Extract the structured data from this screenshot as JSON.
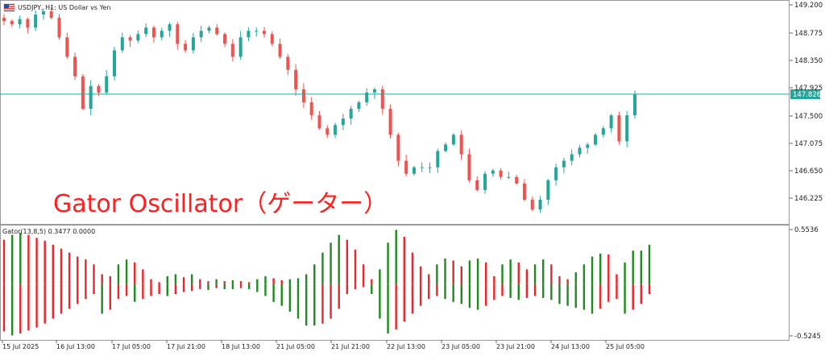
{
  "chart_header": {
    "symbol_label": "USDJPY, H1:  US Dollar vs Yen",
    "flag_icon": "us-flag-icon"
  },
  "overlay": {
    "title": "Gator Oscillator（ゲーター）"
  },
  "indicator": {
    "label": "Gator(13,8,5) 0.3477 0.0000"
  },
  "price_axis": {
    "ticks": [
      "149.200",
      "148.775",
      "148.350",
      "147.925",
      "147.500",
      "147.075",
      "146.650",
      "146.225"
    ],
    "current_price": "147.826"
  },
  "indicator_axis": {
    "ticks": [
      "0.5536",
      "-0.5245"
    ]
  },
  "time_axis": {
    "ticks": [
      "15 Jul 2025",
      "16 Jul 13:00",
      "17 Jul 05:00",
      "17 Jul 21:00",
      "18 Jul 13:00",
      "21 Jul 05:00",
      "21 Jul 21:00",
      "22 Jul 13:00",
      "23 Jul 05:00",
      "23 Jul 21:00",
      "24 Jul 13:00",
      "25 Jul 05:00"
    ]
  },
  "colors": {
    "bull": "#26a69a",
    "bear": "#ef5350",
    "gator_up": "#1f8a1f",
    "gator_down": "#e8262b",
    "price_line": "#26a69a",
    "title": "#ff1f1f"
  },
  "chart_data": [
    {
      "type": "line",
      "chart": "candlestick",
      "series": [
        {
          "values": [
            148.95,
            148.9,
            148.98,
            148.85,
            149.05,
            149.1,
            149.0,
            148.7,
            148.4,
            148.1,
            147.6,
            147.95,
            147.85,
            148.1,
            148.5,
            148.7,
            148.65,
            148.75,
            148.85,
            148.7,
            148.8,
            148.9,
            148.6,
            148.5,
            148.7,
            148.8,
            148.85,
            148.75,
            148.6,
            148.4,
            148.7,
            148.8,
            148.8,
            148.75,
            148.6,
            148.4,
            148.2,
            147.9,
            147.7,
            147.5,
            147.3,
            147.2,
            147.35,
            147.45,
            147.6,
            147.7,
            147.85,
            147.9,
            147.6,
            147.2,
            146.8,
            146.6,
            146.7,
            146.7,
            146.7,
            146.95,
            147.05,
            147.2,
            146.9,
            146.5,
            146.35,
            146.6,
            146.65,
            146.55,
            146.55,
            146.45,
            146.2,
            146.05,
            146.2,
            146.5,
            146.7,
            146.8,
            146.9,
            147.0,
            147.05,
            147.2,
            147.3,
            147.5,
            147.1,
            147.5,
            147.82
          ]
        }
      ],
      "price_ticks": [
        149.2,
        148.775,
        148.35,
        147.925,
        147.5,
        147.075,
        146.65,
        146.225
      ],
      "current_price": 147.826
    },
    {
      "type": "bar",
      "chart": "gator-oscillator",
      "ylim": [
        -0.5245,
        0.5536
      ],
      "series": [
        {
          "values": [
            0.45,
            0.5,
            0.52,
            0.5,
            0.47,
            0.44,
            0.4,
            0.36,
            0.32,
            0.28,
            0.25,
            0.2,
            0.1,
            0.08,
            0.2,
            0.25,
            0.22,
            0.15,
            0.05,
            0.02,
            0.08,
            0.1,
            0.07,
            0.1,
            0.05,
            0.03,
            0.05,
            0.03,
            0.04,
            0.03,
            0.02,
            0.05,
            0.08,
            0.06,
            0.04,
            0.05,
            0.06,
            0.1,
            0.2,
            0.32,
            0.42,
            0.5,
            0.45,
            0.35,
            0.2,
            0.05,
            0.15,
            0.42,
            0.55,
            0.48,
            0.32,
            0.18,
            0.1,
            0.2,
            0.26,
            0.24,
            0.18,
            0.24,
            0.26,
            0.22,
            0.08,
            0.2,
            0.25,
            0.22,
            0.15,
            0.2,
            0.25,
            0.2,
            0.08,
            0.05,
            0.12,
            0.2,
            0.28,
            0.31,
            0.3,
            0.1,
            0.22,
            0.34,
            0.34,
            0.4
          ]
        },
        {
          "values": [
            -0.48,
            -0.52,
            -0.5,
            -0.47,
            -0.44,
            -0.4,
            -0.35,
            -0.3,
            -0.25,
            -0.2,
            -0.15,
            -0.1,
            -0.3,
            -0.26,
            -0.15,
            -0.12,
            -0.18,
            -0.15,
            -0.12,
            -0.1,
            -0.12,
            -0.1,
            -0.08,
            -0.07,
            -0.05,
            -0.06,
            -0.04,
            -0.05,
            -0.05,
            -0.04,
            -0.05,
            -0.08,
            -0.12,
            -0.18,
            -0.22,
            -0.28,
            -0.35,
            -0.42,
            -0.42,
            -0.4,
            -0.35,
            -0.25,
            -0.1,
            -0.05,
            -0.03,
            -0.1,
            -0.35,
            -0.5,
            -0.46,
            -0.38,
            -0.3,
            -0.22,
            -0.15,
            -0.12,
            -0.15,
            -0.18,
            -0.2,
            -0.24,
            -0.26,
            -0.22,
            -0.16,
            -0.12,
            -0.14,
            -0.16,
            -0.14,
            -0.12,
            -0.14,
            -0.16,
            -0.2,
            -0.22,
            -0.24,
            -0.26,
            -0.3,
            -0.25,
            -0.18,
            -0.15,
            -0.3,
            -0.26,
            -0.2,
            -0.1
          ]
        }
      ]
    }
  ]
}
